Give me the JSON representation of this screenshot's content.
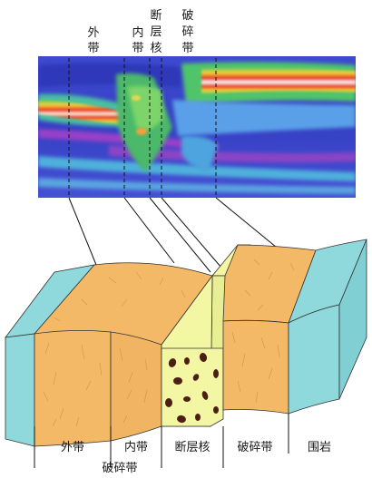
{
  "top_labels": {
    "outer_zone": [
      "外",
      "带"
    ],
    "inner_zone": [
      "内",
      "带"
    ],
    "fault_core": [
      "断",
      "层",
      "核"
    ],
    "fracture_zone": [
      "破",
      "碎",
      "带"
    ]
  },
  "bottom_labels": {
    "outer_zone": "外带",
    "inner_zone": "内带",
    "fault_core": "断层核",
    "fracture_zone": "破碎带",
    "wall_rock": "围岩",
    "fracture_zone_group": "破碎带"
  },
  "colors": {
    "wall_rock": "#8fd8dc",
    "fracture_zone": "#f4b967",
    "fault_core": "#f3f7a4",
    "clast": "#4b1f14",
    "seismic_background": "#3a40c8"
  }
}
